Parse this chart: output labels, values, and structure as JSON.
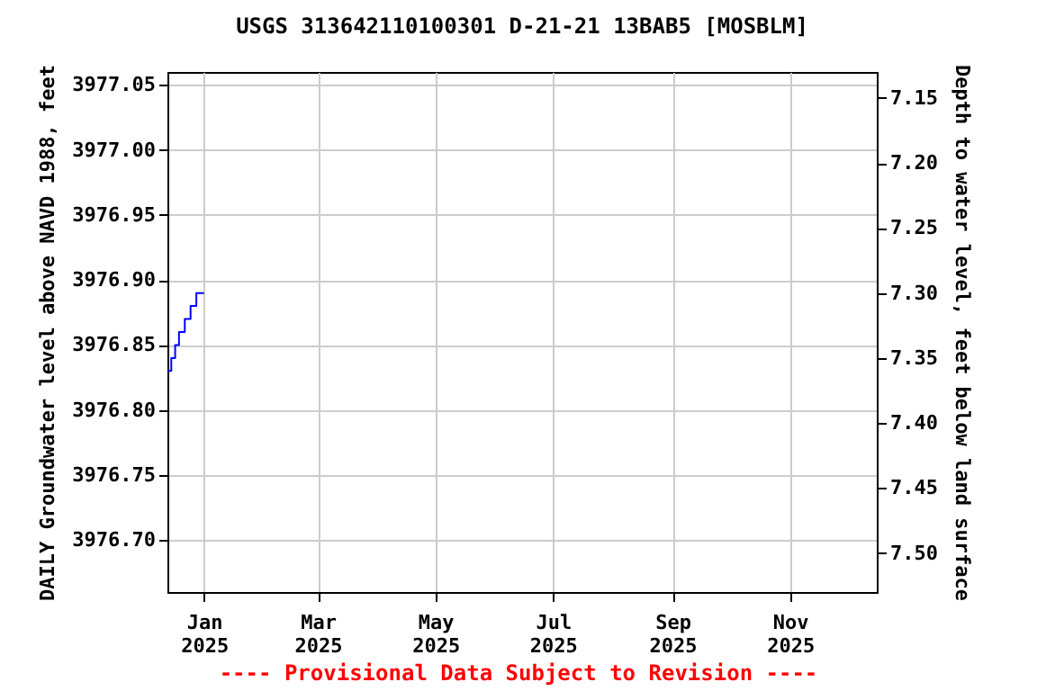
{
  "chart_data": {
    "type": "step",
    "title": "USGS 313642110100301 D-21-21 13BAB5 [MOSBLM]",
    "ylabel": "DAILY Groundwater level above NAVD 1988, feet",
    "y2label": "Depth to water level, feet below land surface",
    "x": [
      "2024-12-13",
      "2024-12-14",
      "2024-12-15",
      "2024-12-16",
      "2024-12-17",
      "2024-12-18",
      "2024-12-19",
      "2024-12-20",
      "2024-12-21",
      "2024-12-22",
      "2024-12-23",
      "2024-12-24",
      "2024-12-25",
      "2024-12-26",
      "2024-12-27",
      "2024-12-28",
      "2024-12-29",
      "2024-12-30",
      "2024-12-31",
      "2025-01-01"
    ],
    "series": [
      {
        "color": "#0000ff",
        "values": [
          3976.83,
          3976.83,
          3976.84,
          3976.84,
          3976.85,
          3976.85,
          3976.86,
          3976.86,
          3976.86,
          3976.87,
          3976.87,
          3976.87,
          3976.88,
          3976.88,
          3976.88,
          3976.89,
          3976.89,
          3976.89,
          3976.89,
          3976.89
        ]
      }
    ],
    "xlim": [
      "2024-12-13",
      "2025-12-16"
    ],
    "xticks": [
      {
        "value": "2025-01-01",
        "label": "Jan 2025"
      },
      {
        "value": "2025-03-01",
        "label": "Mar 2025"
      },
      {
        "value": "2025-05-01",
        "label": "May 2025"
      },
      {
        "value": "2025-07-01",
        "label": "Jul 2025"
      },
      {
        "value": "2025-09-01",
        "label": "Sep 2025"
      },
      {
        "value": "2025-11-01",
        "label": "Nov 2025"
      }
    ],
    "ylim": [
      3976.66,
      3977.06
    ],
    "yticks": [
      {
        "value": 3976.7,
        "label": "3976.70"
      },
      {
        "value": 3976.75,
        "label": "3976.75"
      },
      {
        "value": 3976.8,
        "label": "3976.80"
      },
      {
        "value": 3976.85,
        "label": "3976.85"
      },
      {
        "value": 3976.9,
        "label": "3976.90"
      },
      {
        "value": 3976.95,
        "label": "3976.95"
      },
      {
        "value": 3977.0,
        "label": "3977.00"
      },
      {
        "value": 3977.05,
        "label": "3977.05"
      }
    ],
    "y2lim": [
      7.53,
      7.13
    ],
    "y2ticks": [
      7.15,
      {
        "value": 7.2,
        "label": "7.20"
      },
      7.25,
      {
        "value": 7.3,
        "label": "7.30"
      },
      7.35,
      {
        "value": 7.4,
        "label": "7.40"
      },
      7.45,
      {
        "value": 7.5,
        "label": "7.50"
      }
    ],
    "grid": true,
    "annotations": [
      "---- Provisional Data Subject to Revision ----"
    ]
  }
}
